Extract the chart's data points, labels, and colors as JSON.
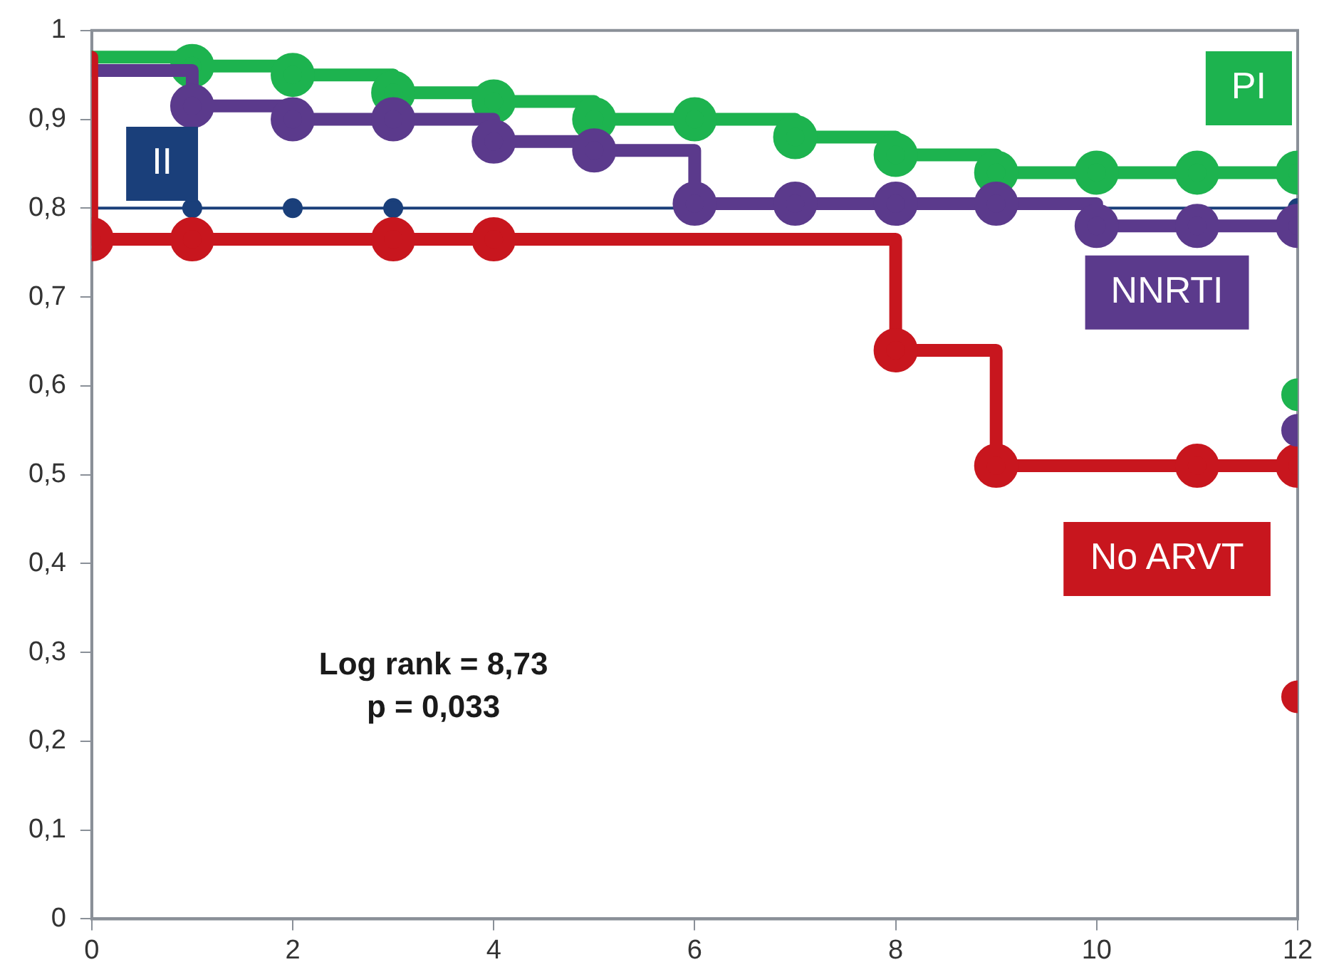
{
  "chart_data": {
    "type": "step",
    "xlim": [
      0,
      12
    ],
    "xticks": [
      0,
      2,
      4,
      6,
      8,
      10,
      12
    ],
    "ylim": [
      0,
      1
    ],
    "yticks": [
      0,
      {
        "value": 0.1,
        "label": "0,1"
      },
      {
        "value": 0.2,
        "label": "0,2"
      },
      {
        "value": 0.3,
        "label": "0,3"
      },
      {
        "value": 0.4,
        "label": "0,4"
      },
      {
        "value": 0.5,
        "label": "0,5"
      },
      {
        "value": 0.6,
        "label": "0,6"
      },
      {
        "value": 0.7,
        "label": "0,7"
      },
      {
        "value": 0.8,
        "label": "0,8"
      },
      {
        "value": 0.9,
        "label": "0,9"
      },
      1
    ],
    "marker": "circle",
    "grid": false,
    "annotations": [
      "Log rank = 8,73",
      "p = 0,033"
    ],
    "series": [
      {
        "name": "II",
        "color": "#1a3f7a",
        "x": [
          0,
          1,
          2,
          3,
          12
        ],
        "values": [
          0.8,
          0.8,
          0.8,
          0.8,
          0.8
        ]
      },
      {
        "name": "PI",
        "color": "#1db34f",
        "x": [
          0,
          1,
          2,
          3,
          4,
          5,
          6,
          7,
          8,
          9,
          10,
          11,
          12
        ],
        "values": [
          0.97,
          0.96,
          0.95,
          0.93,
          0.92,
          0.9,
          0.9,
          0.88,
          0.86,
          0.84,
          0.84,
          0.84,
          0.84
        ]
      },
      {
        "name": "NNRTI",
        "color": "#5b3a8c",
        "x": [
          0,
          1,
          2,
          3,
          4,
          5,
          6,
          7,
          8,
          9,
          10,
          11,
          12
        ],
        "values": [
          0.955,
          0.915,
          0.9,
          0.9,
          0.875,
          0.865,
          0.805,
          0.805,
          0.805,
          0.805,
          0.78,
          0.78,
          0.78
        ]
      },
      {
        "name": "No ARVT",
        "color": "#c8161e",
        "x": [
          0,
          0,
          1,
          3,
          4,
          8,
          9,
          11,
          12
        ],
        "values": [
          0.97,
          0.765,
          0.765,
          0.765,
          0.765,
          0.64,
          0.51,
          0.51,
          0.51
        ]
      },
      {
        "type": "scatter",
        "color": "#1db34f",
        "x": [
          12
        ],
        "values": [
          0.59
        ]
      },
      {
        "type": "scatter",
        "color": "#5b3a8c",
        "x": [
          12
        ],
        "values": [
          0.55
        ]
      },
      {
        "type": "scatter",
        "color": "#c8161e",
        "x": [
          12
        ],
        "values": [
          0.25
        ]
      }
    ]
  }
}
